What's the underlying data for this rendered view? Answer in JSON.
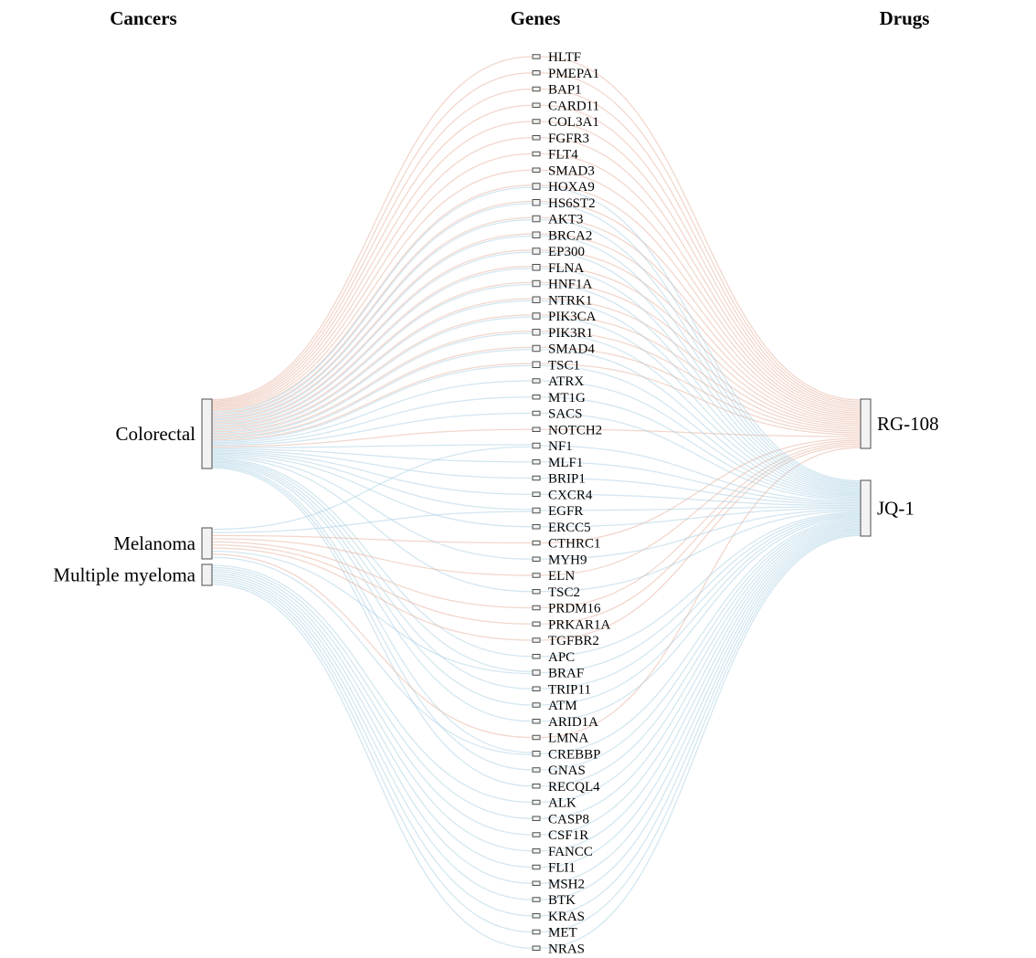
{
  "chart_data": {
    "type": "sankey",
    "column_headers": [
      "Cancers",
      "Genes",
      "Drugs"
    ],
    "cancers": [
      "Colorectal",
      "Melanoma",
      "Multiple myeloma"
    ],
    "drugs": [
      "RG-108",
      "JQ-1"
    ],
    "link_colors": {
      "RG-108": "#e5ae97",
      "JQ-1": "#a5cde2"
    },
    "genes": [
      "HLTF",
      "PMEPA1",
      "BAP1",
      "CARD11",
      "COL3A1",
      "FGFR3",
      "FLT4",
      "SMAD3",
      "HOXA9",
      "HS6ST2",
      "AKT3",
      "BRCA2",
      "EP300",
      "FLNA",
      "HNF1A",
      "NTRK1",
      "PIK3CA",
      "PIK3R1",
      "SMAD4",
      "TSC1",
      "ATRX",
      "MT1G",
      "SACS",
      "NOTCH2",
      "NF1",
      "MLF1",
      "BRIP1",
      "CXCR4",
      "EGFR",
      "ERCC5",
      "CTHRC1",
      "MYH9",
      "ELN",
      "TSC2",
      "PRDM16",
      "PRKAR1A",
      "TGFBR2",
      "APC",
      "BRAF",
      "TRIP11",
      "ATM",
      "ARID1A",
      "LMNA",
      "CREBBP",
      "GNAS",
      "RECQL4",
      "ALK",
      "CASP8",
      "CSF1R",
      "FANCC",
      "FLI1",
      "MSH2",
      "BTK",
      "KRAS",
      "MET",
      "NRAS"
    ],
    "links_cancer_to_gene": [
      [
        "Colorectal",
        "HLTF",
        "RG-108"
      ],
      [
        "Colorectal",
        "PMEPA1",
        "RG-108"
      ],
      [
        "Colorectal",
        "BAP1",
        "RG-108"
      ],
      [
        "Colorectal",
        "CARD11",
        "RG-108"
      ],
      [
        "Colorectal",
        "COL3A1",
        "RG-108"
      ],
      [
        "Colorectal",
        "FGFR3",
        "RG-108"
      ],
      [
        "Colorectal",
        "FLT4",
        "RG-108"
      ],
      [
        "Colorectal",
        "SMAD3",
        "RG-108"
      ],
      [
        "Colorectal",
        "HOXA9",
        "RG-108"
      ],
      [
        "Colorectal",
        "HOXA9",
        "JQ-1"
      ],
      [
        "Colorectal",
        "HS6ST2",
        "RG-108"
      ],
      [
        "Colorectal",
        "HS6ST2",
        "JQ-1"
      ],
      [
        "Colorectal",
        "AKT3",
        "RG-108"
      ],
      [
        "Colorectal",
        "AKT3",
        "JQ-1"
      ],
      [
        "Colorectal",
        "BRCA2",
        "RG-108"
      ],
      [
        "Colorectal",
        "BRCA2",
        "JQ-1"
      ],
      [
        "Colorectal",
        "EP300",
        "RG-108"
      ],
      [
        "Colorectal",
        "EP300",
        "JQ-1"
      ],
      [
        "Colorectal",
        "FLNA",
        "RG-108"
      ],
      [
        "Colorectal",
        "FLNA",
        "JQ-1"
      ],
      [
        "Colorectal",
        "HNF1A",
        "RG-108"
      ],
      [
        "Colorectal",
        "HNF1A",
        "JQ-1"
      ],
      [
        "Colorectal",
        "NTRK1",
        "RG-108"
      ],
      [
        "Colorectal",
        "NTRK1",
        "JQ-1"
      ],
      [
        "Colorectal",
        "PIK3CA",
        "RG-108"
      ],
      [
        "Colorectal",
        "PIK3CA",
        "JQ-1"
      ],
      [
        "Colorectal",
        "PIK3R1",
        "RG-108"
      ],
      [
        "Colorectal",
        "PIK3R1",
        "JQ-1"
      ],
      [
        "Colorectal",
        "SMAD4",
        "RG-108"
      ],
      [
        "Colorectal",
        "SMAD4",
        "JQ-1"
      ],
      [
        "Colorectal",
        "TSC1",
        "RG-108"
      ],
      [
        "Colorectal",
        "TSC1",
        "JQ-1"
      ],
      [
        "Colorectal",
        "ATRX",
        "JQ-1"
      ],
      [
        "Colorectal",
        "MT1G",
        "JQ-1"
      ],
      [
        "Colorectal",
        "SACS",
        "JQ-1"
      ],
      [
        "Colorectal",
        "NOTCH2",
        "RG-108"
      ],
      [
        "Colorectal",
        "NF1",
        "JQ-1"
      ],
      [
        "Colorectal",
        "MLF1",
        "JQ-1"
      ],
      [
        "Colorectal",
        "BRIP1",
        "JQ-1"
      ],
      [
        "Colorectal",
        "CXCR4",
        "JQ-1"
      ],
      [
        "Colorectal",
        "EGFR",
        "JQ-1"
      ],
      [
        "Colorectal",
        "ERCC5",
        "JQ-1"
      ],
      [
        "Colorectal",
        "MYH9",
        "JQ-1"
      ],
      [
        "Colorectal",
        "TSC2",
        "JQ-1"
      ],
      [
        "Colorectal",
        "APC",
        "JQ-1"
      ],
      [
        "Colorectal",
        "BRAF",
        "JQ-1"
      ],
      [
        "Colorectal",
        "TRIP11",
        "JQ-1"
      ],
      [
        "Colorectal",
        "ATM",
        "JQ-1"
      ],
      [
        "Colorectal",
        "ARID1A",
        "JQ-1"
      ],
      [
        "Colorectal",
        "CREBBP",
        "JQ-1"
      ],
      [
        "Colorectal",
        "GNAS",
        "JQ-1"
      ],
      [
        "Colorectal",
        "RECQL4",
        "JQ-1"
      ],
      [
        "Melanoma",
        "NF1",
        "JQ-1"
      ],
      [
        "Melanoma",
        "EGFR",
        "JQ-1"
      ],
      [
        "Melanoma",
        "CTHRC1",
        "RG-108"
      ],
      [
        "Melanoma",
        "ELN",
        "RG-108"
      ],
      [
        "Melanoma",
        "PRDM16",
        "RG-108"
      ],
      [
        "Melanoma",
        "PRKAR1A",
        "RG-108"
      ],
      [
        "Melanoma",
        "TGFBR2",
        "RG-108"
      ],
      [
        "Melanoma",
        "BRAF",
        "JQ-1"
      ],
      [
        "Melanoma",
        "LMNA",
        "RG-108"
      ],
      [
        "Melanoma",
        "CREBBP",
        "JQ-1"
      ],
      [
        "Multiple myeloma",
        "ALK",
        "JQ-1"
      ],
      [
        "Multiple myeloma",
        "CASP8",
        "JQ-1"
      ],
      [
        "Multiple myeloma",
        "CSF1R",
        "JQ-1"
      ],
      [
        "Multiple myeloma",
        "FANCC",
        "JQ-1"
      ],
      [
        "Multiple myeloma",
        "FLI1",
        "JQ-1"
      ],
      [
        "Multiple myeloma",
        "MSH2",
        "JQ-1"
      ],
      [
        "Multiple myeloma",
        "BTK",
        "JQ-1"
      ],
      [
        "Multiple myeloma",
        "KRAS",
        "JQ-1"
      ],
      [
        "Multiple myeloma",
        "MET",
        "JQ-1"
      ],
      [
        "Multiple myeloma",
        "NRAS",
        "JQ-1"
      ]
    ],
    "links_gene_to_drug": [
      [
        "HLTF",
        "RG-108"
      ],
      [
        "PMEPA1",
        "RG-108"
      ],
      [
        "BAP1",
        "RG-108"
      ],
      [
        "CARD11",
        "RG-108"
      ],
      [
        "COL3A1",
        "RG-108"
      ],
      [
        "FGFR3",
        "RG-108"
      ],
      [
        "FLT4",
        "RG-108"
      ],
      [
        "SMAD3",
        "RG-108"
      ],
      [
        "HOXA9",
        "RG-108"
      ],
      [
        "HOXA9",
        "JQ-1"
      ],
      [
        "HS6ST2",
        "RG-108"
      ],
      [
        "HS6ST2",
        "JQ-1"
      ],
      [
        "AKT3",
        "RG-108"
      ],
      [
        "AKT3",
        "JQ-1"
      ],
      [
        "BRCA2",
        "RG-108"
      ],
      [
        "BRCA2",
        "JQ-1"
      ],
      [
        "EP300",
        "RG-108"
      ],
      [
        "EP300",
        "JQ-1"
      ],
      [
        "FLNA",
        "RG-108"
      ],
      [
        "FLNA",
        "JQ-1"
      ],
      [
        "HNF1A",
        "RG-108"
      ],
      [
        "HNF1A",
        "JQ-1"
      ],
      [
        "NTRK1",
        "RG-108"
      ],
      [
        "NTRK1",
        "JQ-1"
      ],
      [
        "PIK3CA",
        "RG-108"
      ],
      [
        "PIK3CA",
        "JQ-1"
      ],
      [
        "PIK3R1",
        "RG-108"
      ],
      [
        "PIK3R1",
        "JQ-1"
      ],
      [
        "SMAD4",
        "RG-108"
      ],
      [
        "SMAD4",
        "JQ-1"
      ],
      [
        "TSC1",
        "RG-108"
      ],
      [
        "TSC1",
        "JQ-1"
      ],
      [
        "ATRX",
        "JQ-1"
      ],
      [
        "MT1G",
        "JQ-1"
      ],
      [
        "SACS",
        "JQ-1"
      ],
      [
        "NOTCH2",
        "RG-108"
      ],
      [
        "NF1",
        "JQ-1"
      ],
      [
        "MLF1",
        "JQ-1"
      ],
      [
        "BRIP1",
        "JQ-1"
      ],
      [
        "CXCR4",
        "JQ-1"
      ],
      [
        "EGFR",
        "JQ-1"
      ],
      [
        "ERCC5",
        "JQ-1"
      ],
      [
        "CTHRC1",
        "RG-108"
      ],
      [
        "MYH9",
        "JQ-1"
      ],
      [
        "ELN",
        "RG-108"
      ],
      [
        "TSC2",
        "JQ-1"
      ],
      [
        "PRDM16",
        "RG-108"
      ],
      [
        "PRKAR1A",
        "RG-108"
      ],
      [
        "TGFBR2",
        "RG-108"
      ],
      [
        "APC",
        "JQ-1"
      ],
      [
        "BRAF",
        "JQ-1"
      ],
      [
        "TRIP11",
        "JQ-1"
      ],
      [
        "ATM",
        "JQ-1"
      ],
      [
        "ARID1A",
        "JQ-1"
      ],
      [
        "LMNA",
        "RG-108"
      ],
      [
        "CREBBP",
        "JQ-1"
      ],
      [
        "GNAS",
        "JQ-1"
      ],
      [
        "RECQL4",
        "JQ-1"
      ],
      [
        "ALK",
        "JQ-1"
      ],
      [
        "CASP8",
        "JQ-1"
      ],
      [
        "CSF1R",
        "JQ-1"
      ],
      [
        "FANCC",
        "JQ-1"
      ],
      [
        "FLI1",
        "JQ-1"
      ],
      [
        "MSH2",
        "JQ-1"
      ],
      [
        "BTK",
        "JQ-1"
      ],
      [
        "KRAS",
        "JQ-1"
      ],
      [
        "MET",
        "JQ-1"
      ],
      [
        "NRAS",
        "JQ-1"
      ]
    ]
  }
}
